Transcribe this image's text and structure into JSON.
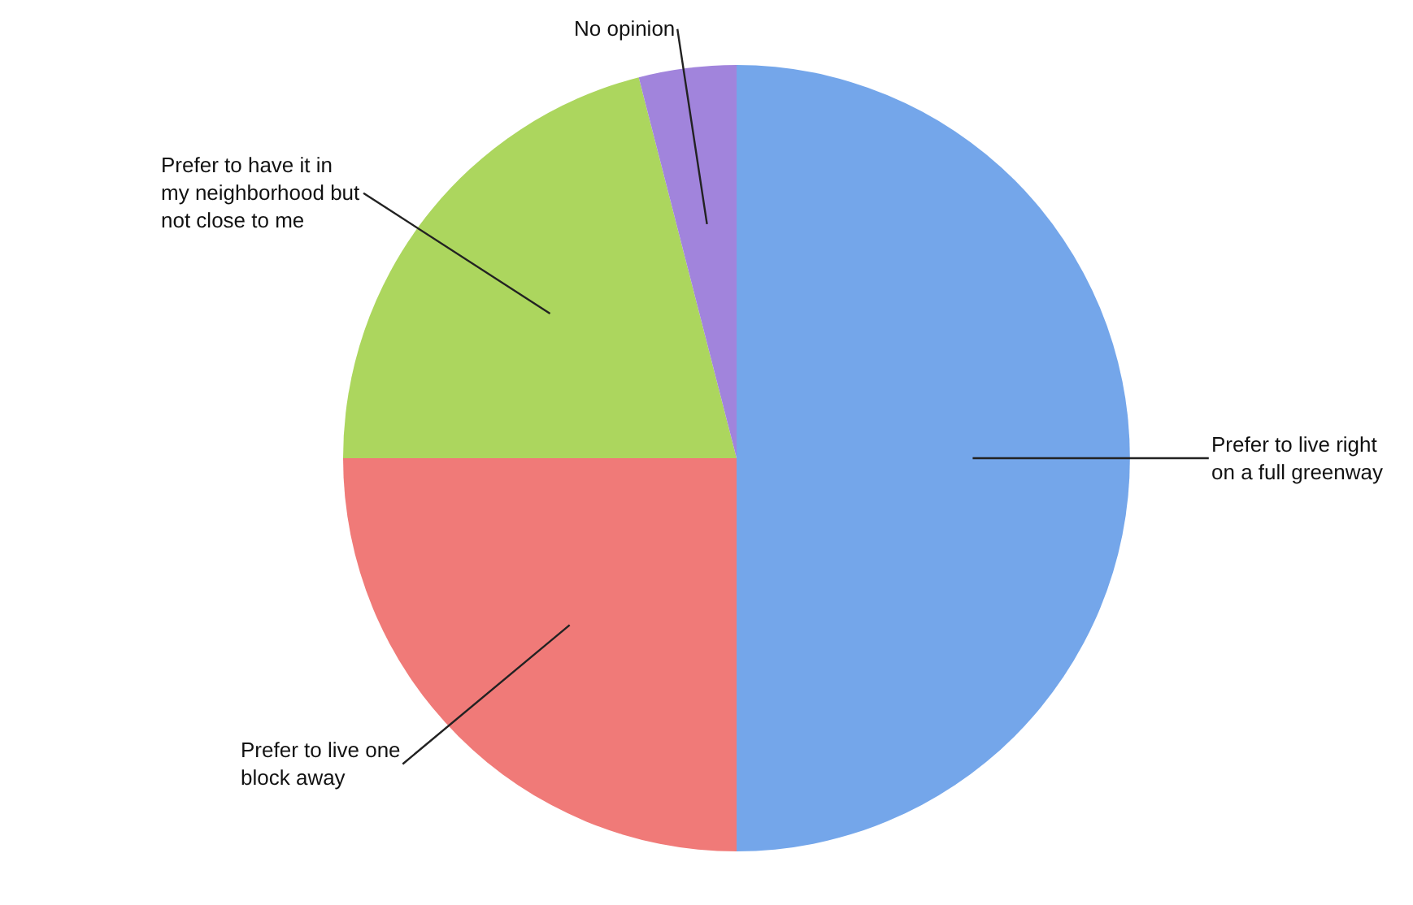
{
  "chart_data": {
    "type": "pie",
    "categories": [
      "Prefer to live right on a full greenway",
      "Prefer to live one block away",
      "Prefer to have it in my neighborhood but not close to me",
      "No opinion"
    ],
    "values": [
      50,
      25,
      21,
      4
    ],
    "colors": [
      "#74a6ea",
      "#f07a78",
      "#acd65e",
      "#a184dc"
    ]
  }
}
